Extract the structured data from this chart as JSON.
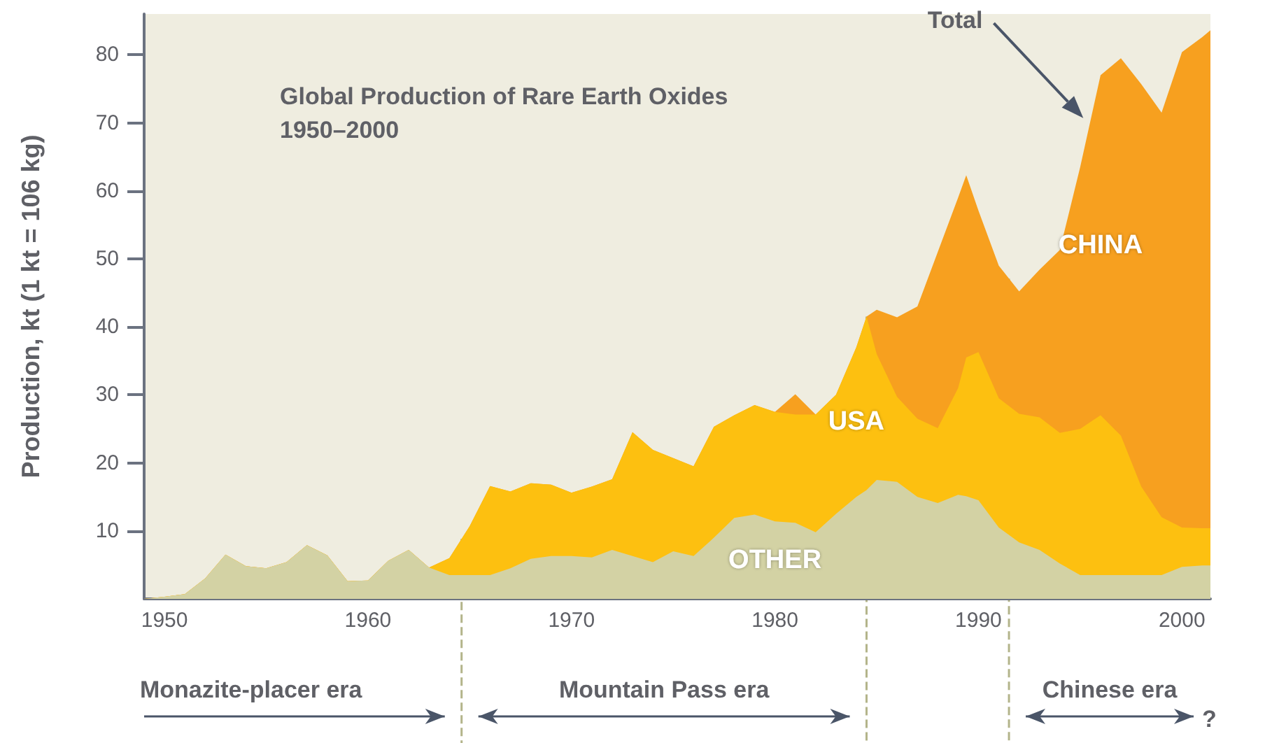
{
  "chart_data": {
    "type": "area",
    "stacked": true,
    "title": "Global Production of Rare Earth Oxides\n1950–2000",
    "ylabel": "Production, kt (1 kt = 106 kg)",
    "x": [
      1949,
      1950,
      1951,
      1952,
      1953,
      1954,
      1955,
      1956,
      1957,
      1958,
      1959,
      1960,
      1961,
      1962,
      1963,
      1964,
      1965,
      1966,
      1967,
      1968,
      1969,
      1970,
      1971,
      1972,
      1973,
      1974,
      1975,
      1976,
      1977,
      1978,
      1979,
      1980,
      1981,
      1982,
      1983,
      1984,
      1984.5,
      1985,
      1986,
      1987,
      1988,
      1989,
      1989.4,
      1990,
      1991,
      1992,
      1993,
      1994,
      1995,
      1996,
      1997,
      1998,
      1999,
      2000,
      2001,
      2001.4
    ],
    "series": [
      {
        "name": "OTHER",
        "color": "#d3d2a4",
        "values": [
          0,
          0.3,
          0.7,
          3,
          6.5,
          4.8,
          4.5,
          5.4,
          7.9,
          6.4,
          2.6,
          2.7,
          5.6,
          7.2,
          4.6,
          3.5,
          3.5,
          3.5,
          4.5,
          5.9,
          6.3,
          6.3,
          6.1,
          7.2,
          6.3,
          5.4,
          7,
          6.3,
          9,
          11.9,
          12.4,
          11.4,
          11.2,
          9.8,
          12.5,
          15,
          16,
          17.5,
          17.2,
          15,
          14.1,
          15.3,
          15.1,
          14.5,
          10.5,
          8.3,
          7.2,
          5.2,
          3.5,
          3.5,
          3.5,
          3.5,
          3.5,
          4.7,
          4.9,
          4.9
        ]
      },
      {
        "name": "USA",
        "color": "#fdc010",
        "values": [
          0,
          0,
          0,
          0,
          0,
          0,
          0,
          0,
          0,
          0,
          0,
          0,
          0,
          0,
          0,
          2.5,
          7.2,
          13.1,
          11.3,
          11.1,
          10.5,
          9.3,
          10.4,
          10.4,
          18.2,
          16.5,
          13.7,
          13.2,
          16.3,
          15.1,
          16.1,
          16.1,
          15.9,
          17.3,
          17.5,
          22,
          25.5,
          18.5,
          12.5,
          11.5,
          11,
          15.7,
          20.4,
          21.8,
          19,
          18.9,
          19.5,
          19.2,
          21.5,
          23.5,
          20.5,
          13,
          8.5,
          5.8,
          5.5,
          5.5
        ]
      },
      {
        "name": "CHINA",
        "color": "#f7a01f",
        "values": [
          0,
          0,
          0,
          0,
          0,
          0,
          0,
          0,
          0,
          0,
          0,
          0,
          0,
          0,
          0,
          0,
          0,
          0,
          0,
          0,
          0,
          0,
          0,
          0,
          0,
          0,
          0,
          0,
          0,
          0,
          0,
          0,
          3,
          0,
          0,
          0,
          0,
          6.5,
          11.7,
          16.5,
          25.9,
          28,
          26.8,
          20.8,
          19.5,
          18,
          21.7,
          26.9,
          38.5,
          50,
          55.5,
          59.2,
          59.5,
          69.9,
          72.2,
          73.2
        ]
      }
    ],
    "xlim": [
      1949,
      2001.4
    ],
    "ylim": [
      0,
      86
    ],
    "xticks": [
      1950,
      1960,
      1970,
      1980,
      1990,
      2000
    ],
    "yticks": [
      10,
      20,
      30,
      40,
      50,
      60,
      70,
      80
    ],
    "ref_lines": [
      {
        "axis": "x",
        "value": 1964.6,
        "line_style": "dashed",
        "color": "#b3b48a"
      },
      {
        "axis": "x",
        "value": 1984.5,
        "line_style": "dashed",
        "color": "#b3b48a"
      },
      {
        "axis": "x",
        "value": 1991.5,
        "line_style": "dashed",
        "color": "#b3b48a"
      }
    ],
    "annotations": [
      "Total",
      "Monazite-placer era",
      "Mountain Pass era",
      "Chinese era",
      "?"
    ]
  }
}
